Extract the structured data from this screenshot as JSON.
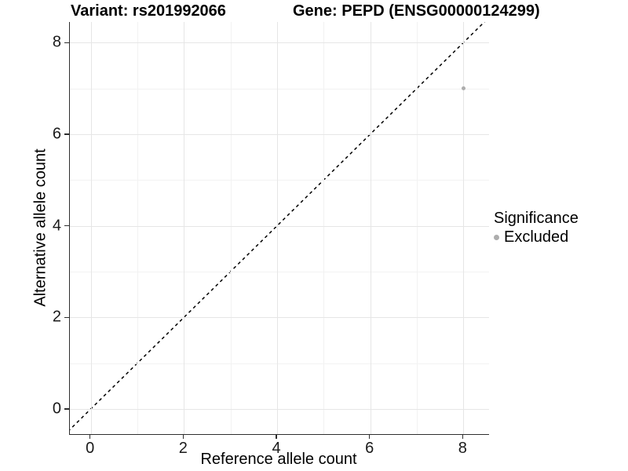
{
  "chart_data": {
    "type": "scatter",
    "title_left": "Variant: rs201992066",
    "title_right": "Gene: PEPD (ENSG00000124299)",
    "xlabel": "Reference allele count",
    "ylabel": "Alternative allele count",
    "xlim": [
      -0.45,
      8.55
    ],
    "ylim": [
      -0.55,
      8.45
    ],
    "x_major_ticks": [
      0,
      2,
      4,
      6,
      8
    ],
    "x_minor_ticks": [
      1,
      3,
      5,
      7
    ],
    "y_major_ticks": [
      0,
      2,
      4,
      6,
      8
    ],
    "y_minor_ticks": [
      1,
      3,
      5,
      7
    ],
    "grid": true,
    "identity_line": {
      "slope": 1,
      "intercept": 0,
      "style": "dashed",
      "color": "#000000"
    },
    "points": [
      {
        "x": 8,
        "y": 7,
        "series": "Excluded"
      }
    ],
    "legend": {
      "title": "Significance",
      "position": "right",
      "entries": [
        {
          "label": "Excluded",
          "marker": "circle",
          "color": "#adadad"
        }
      ]
    },
    "colors": {
      "point": "#adadad",
      "grid_major": "#e6e6e6",
      "grid_minor": "#f2f2f2",
      "axis_line": "#2e2e2e",
      "text": "#000000"
    }
  }
}
